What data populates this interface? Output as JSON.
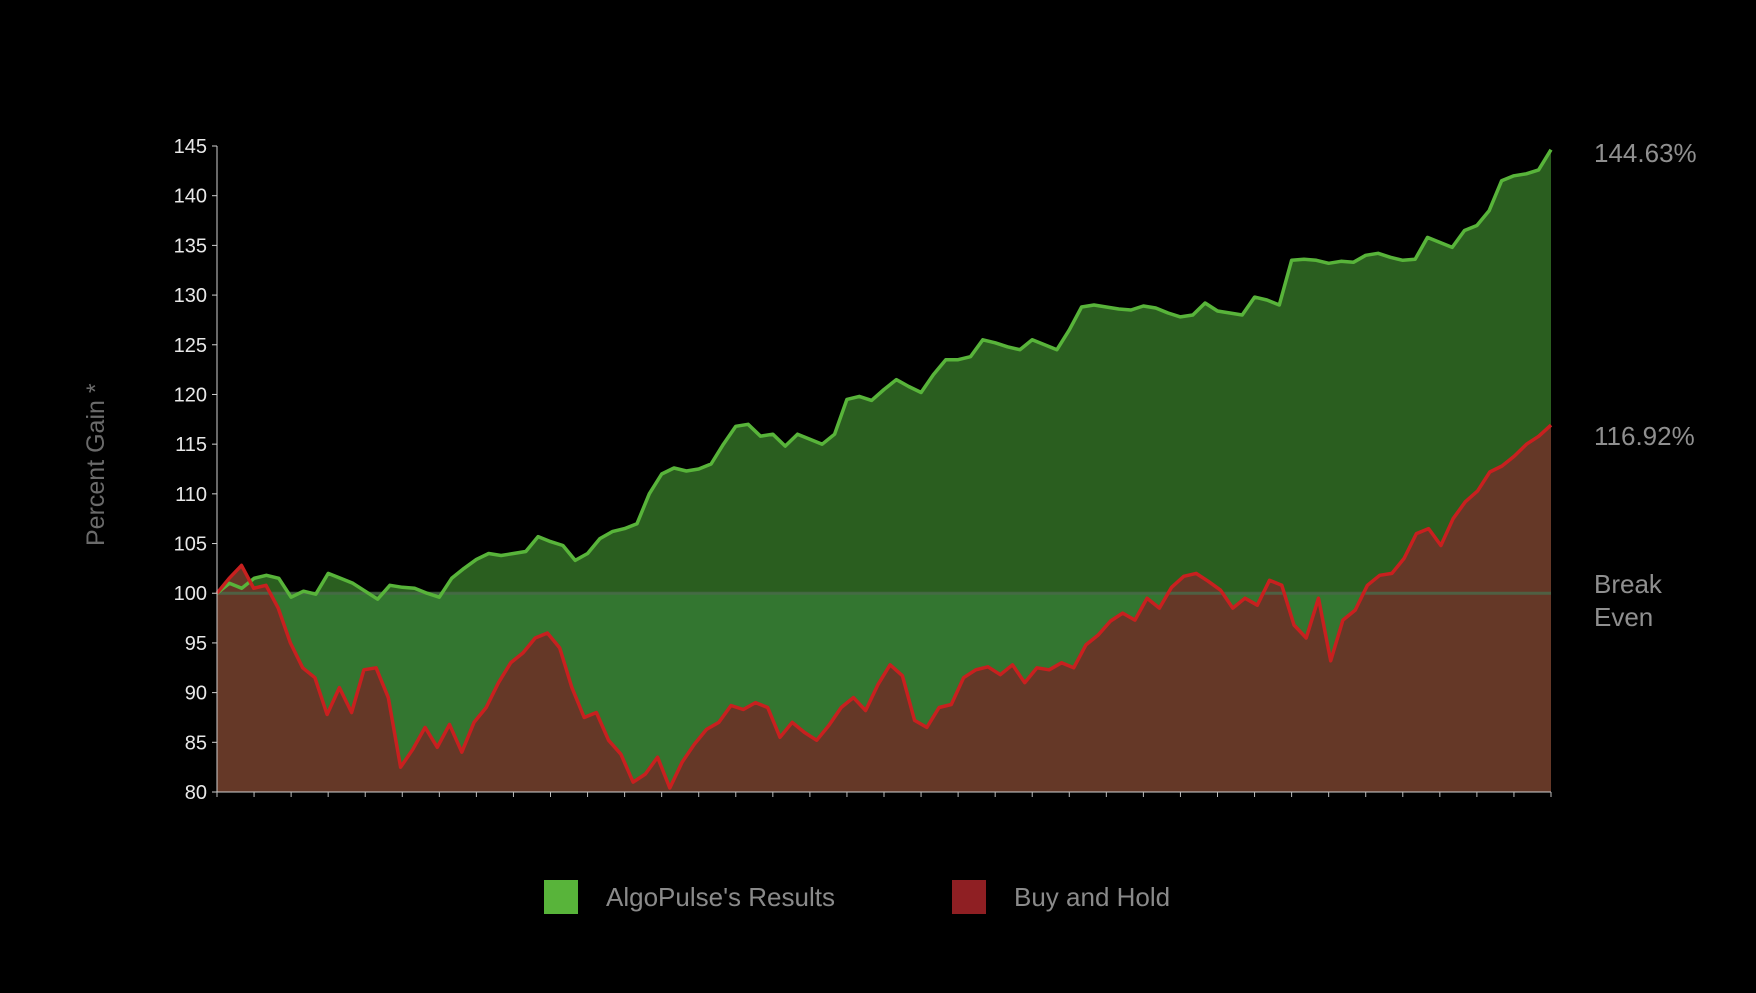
{
  "chart_data": {
    "type": "area",
    "title": "",
    "xlabel": "",
    "ylabel": "Percent Gain *",
    "ylim": [
      80,
      145
    ],
    "yticks": [
      80,
      85,
      90,
      95,
      100,
      105,
      110,
      115,
      120,
      125,
      130,
      135,
      140,
      145
    ],
    "x_tick_count": 37,
    "baseline": 100,
    "baseline_label_line1": "Break",
    "baseline_label_line2": "Even",
    "grid": false,
    "legend_position": "bottom-center",
    "series": [
      {
        "name": "AlgoPulse's Results",
        "color": "#58b43a",
        "fill": "#2a5e1f",
        "end_label": "144.63%",
        "values": [
          100,
          101,
          100.5,
          101.5,
          101.8,
          101.5,
          99.6,
          100.2,
          99.9,
          102,
          101.5,
          101,
          100.2,
          99.4,
          100.8,
          100.6,
          100.5,
          100,
          99.6,
          101.5,
          102.5,
          103.4,
          104,
          103.8,
          104,
          104.2,
          105.7,
          105.2,
          104.8,
          103.3,
          104,
          105.5,
          106.2,
          106.5,
          107,
          110,
          112,
          112.6,
          112.3,
          112.5,
          113,
          115,
          116.8,
          117,
          115.8,
          116,
          114.8,
          116,
          115.5,
          115,
          116,
          119.5,
          119.8,
          119.4,
          120.5,
          121.5,
          120.8,
          120.2,
          122,
          123.5,
          123.5,
          123.8,
          125.5,
          125.2,
          124.8,
          124.5,
          125.5,
          125,
          124.5,
          126.5,
          128.8,
          129,
          128.8,
          128.6,
          128.5,
          128.9,
          128.7,
          128.2,
          127.8,
          128,
          129.2,
          128.4,
          128.2,
          128,
          129.8,
          129.5,
          129,
          133.5,
          133.6,
          133.5,
          133.2,
          133.4,
          133.3,
          134,
          134.2,
          133.8,
          133.5,
          133.6,
          135.8,
          135.3,
          134.8,
          136.5,
          137,
          138.5,
          141.5,
          142,
          142.2,
          142.6,
          144.63
        ]
      },
      {
        "name": "Buy and Hold",
        "color": "#c8201f",
        "fill": "#653827",
        "end_label": "116.92%",
        "values": [
          100,
          101.5,
          102.8,
          100.5,
          100.8,
          98.5,
          95,
          92.5,
          91.5,
          87.8,
          90.5,
          88,
          92.3,
          92.5,
          89.5,
          82.5,
          84.3,
          86.5,
          84.5,
          86.8,
          84,
          87,
          88.5,
          91,
          93,
          94,
          95.5,
          96,
          94.5,
          90.5,
          87.5,
          88,
          85.2,
          83.8,
          81,
          81.8,
          83.5,
          80.4,
          83,
          84.8,
          86.3,
          87,
          88.7,
          88.3,
          89,
          88.5,
          85.5,
          87,
          86,
          85.2,
          86.7,
          88.5,
          89.5,
          88.2,
          90.8,
          92.8,
          91.7,
          87.2,
          86.5,
          88.5,
          88.8,
          91.5,
          92.3,
          92.6,
          91.8,
          92.8,
          91,
          92.5,
          92.3,
          93,
          92.5,
          94.8,
          95.8,
          97.2,
          98,
          97.3,
          99.5,
          98.5,
          100.6,
          101.7,
          102,
          101.2,
          100.3,
          98.5,
          99.5,
          98.8,
          101.3,
          100.8,
          96.8,
          95.5,
          99.5,
          93.2,
          97.3,
          98.3,
          100.8,
          101.8,
          102,
          103.5,
          106,
          106.5,
          104.8,
          107.5,
          109.2,
          110.3,
          112.2,
          112.8,
          113.8,
          115,
          115.8,
          116.92
        ]
      }
    ]
  }
}
